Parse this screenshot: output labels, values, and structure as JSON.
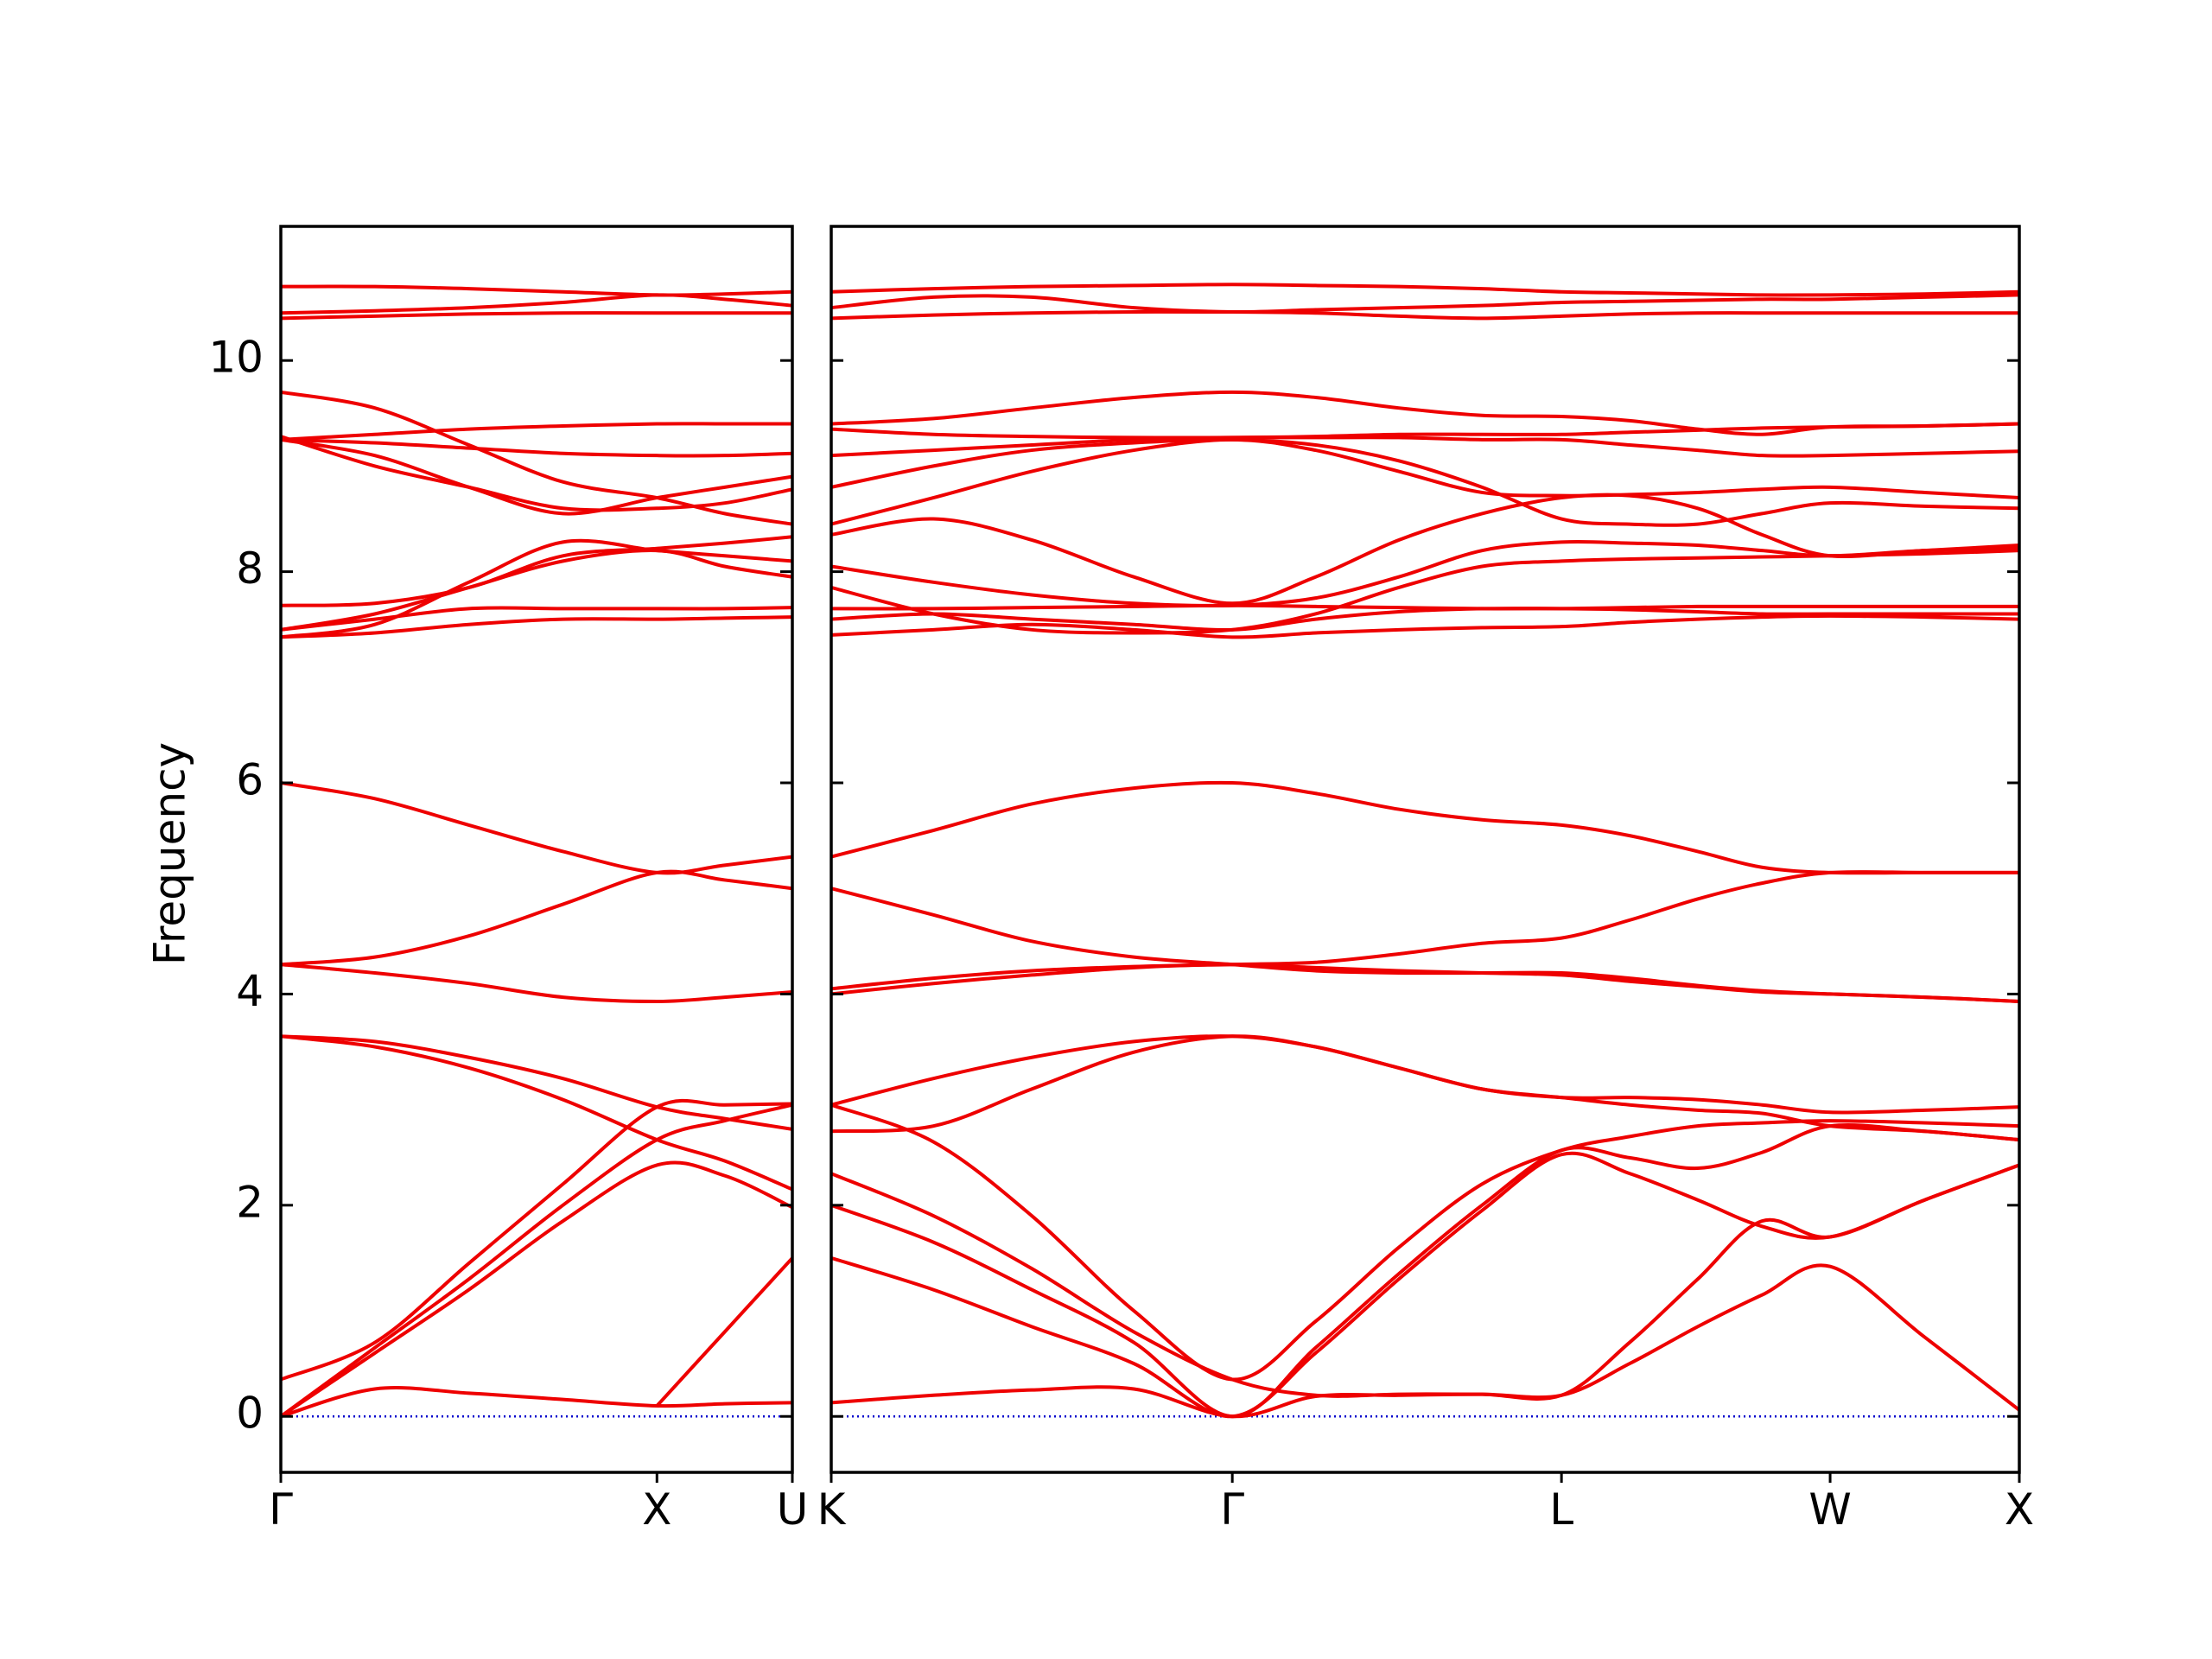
{
  "chart_data": [
    {
      "type": "line",
      "ylabel": "Frequency",
      "line_color": "#ee0000",
      "zero_line": {
        "y": 0,
        "color": "#0000cc"
      },
      "xlim": [
        0,
        1.36
      ],
      "ylim": [
        -0.53,
        11.27
      ],
      "xticks": [
        {
          "value": 0,
          "label": "Γ"
        },
        {
          "value": 1,
          "label": "X"
        },
        {
          "value": 1.36,
          "label": "U"
        }
      ],
      "yticks": [
        0,
        2,
        4,
        6,
        8,
        10
      ],
      "x": [
        0,
        0.25,
        0.5,
        0.75,
        1.0,
        1.18,
        1.36
      ],
      "series": [
        {
          "values": [
            0,
            0.26,
            0.22,
            0.16,
            0.1,
            0.12,
            0.13
          ]
        },
        {
          "values": [
            0,
            0.6,
            1.2,
            1.85,
            2.38,
            2.28,
            1.98
          ]
        },
        {
          "values": [
            0,
            0.65,
            1.3,
            2.0,
            2.62,
            2.8,
            2.95
          ]
        },
        {
          "values": [
            0.35,
            0.7,
            1.45,
            2.2,
            2.93,
            2.95,
            2.96
          ]
        },
        {
          "values": [
            3.6,
            3.5,
            3.3,
            3.0,
            2.62,
            2.42,
            2.15
          ]
        },
        {
          "values": [
            3.6,
            3.55,
            3.4,
            3.2,
            2.93,
            2.82,
            2.72
          ]
        },
        {
          "values": [
            null,
            null,
            null,
            null,
            0.1,
            0.8,
            1.5
          ]
        },
        {
          "values": [
            4.28,
            4.2,
            4.1,
            3.97,
            3.93,
            3.97,
            4.02
          ]
        },
        {
          "values": [
            4.28,
            4.35,
            4.55,
            4.85,
            5.15,
            5.08,
            5.0
          ]
        },
        {
          "values": [
            6.0,
            5.85,
            5.6,
            5.35,
            5.15,
            5.22,
            5.3
          ]
        },
        {
          "values": [
            7.38,
            7.42,
            7.5,
            7.55,
            7.55,
            7.56,
            7.57
          ]
        },
        {
          "values": [
            7.45,
            7.55,
            7.65,
            7.65,
            7.65,
            7.65,
            7.66
          ]
        },
        {
          "values": [
            7.45,
            7.6,
            7.85,
            8.1,
            8.2,
            8.05,
            7.95
          ]
        },
        {
          "values": [
            7.68,
            7.7,
            7.85,
            8.15,
            8.22,
            8.27,
            8.33
          ]
        },
        {
          "values": [
            7.38,
            7.5,
            7.9,
            8.28,
            8.2,
            8.15,
            8.1
          ]
        },
        {
          "values": [
            9.25,
            9.1,
            8.8,
            8.55,
            8.7,
            8.8,
            8.9
          ]
        },
        {
          "values": [
            9.28,
            9.0,
            8.8,
            8.6,
            8.6,
            8.65,
            8.78
          ]
        },
        {
          "values": [
            9.25,
            9.22,
            9.17,
            9.12,
            9.1,
            9.1,
            9.12
          ]
        },
        {
          "values": [
            9.25,
            9.3,
            9.35,
            9.38,
            9.4,
            9.4,
            9.4
          ]
        },
        {
          "values": [
            9.7,
            9.55,
            9.2,
            8.85,
            8.7,
            8.55,
            8.45
          ]
        },
        {
          "values": [
            10.4,
            10.42,
            10.44,
            10.45,
            10.45,
            10.45,
            10.45
          ]
        },
        {
          "values": [
            10.45,
            10.47,
            10.5,
            10.55,
            10.62,
            10.58,
            10.52
          ]
        },
        {
          "values": [
            10.7,
            10.7,
            10.68,
            10.65,
            10.62,
            10.63,
            10.65
          ]
        }
      ]
    },
    {
      "type": "line",
      "line_color": "#ee0000",
      "zero_line": {
        "y": 0,
        "color": "#0000cc"
      },
      "xlim": [
        0,
        3.14
      ],
      "ylim": [
        -0.53,
        11.27
      ],
      "xticks": [
        {
          "value": 0,
          "label": "K"
        },
        {
          "value": 1.06,
          "label": "Γ"
        },
        {
          "value": 1.93,
          "label": "L"
        },
        {
          "value": 2.64,
          "label": "W"
        },
        {
          "value": 3.14,
          "label": "X"
        }
      ],
      "x": [
        0,
        0.27,
        0.53,
        0.8,
        1.06,
        1.28,
        1.5,
        1.72,
        1.93,
        2.11,
        2.29,
        2.46,
        2.64,
        2.89,
        3.14
      ],
      "series": [
        {
          "values": [
            0.13,
            0.2,
            0.25,
            0.26,
            0,
            0.19,
            0.2,
            0.21,
            0.2,
            0.5,
            0.85,
            1.15,
            1.42,
            0.75,
            0.06
          ]
        },
        {
          "values": [
            1.5,
            1.2,
            0.85,
            0.5,
            0,
            0.6,
            1.3,
            1.95,
            2.48,
            2.3,
            2.05,
            1.8,
            1.7,
            2.05,
            2.38
          ]
        },
        {
          "values": [
            2.0,
            1.65,
            1.2,
            0.7,
            0,
            0.65,
            1.35,
            2.0,
            2.52,
            2.45,
            2.35,
            2.5,
            2.75,
            2.7,
            2.62
          ]
        },
        {
          "values": [
            2.3,
            1.9,
            1.4,
            0.8,
            0.35,
            0.2,
            0.21,
            0.21,
            0.2,
            0.7,
            1.3,
            1.85,
            1.7,
            2.05,
            2.38
          ]
        },
        {
          "values": [
            2.95,
            2.6,
            1.9,
            1.0,
            0.35,
            0.9,
            1.6,
            2.2,
            2.52,
            2.65,
            2.75,
            2.78,
            2.8,
            2.78,
            2.75
          ]
        },
        {
          "values": [
            2.7,
            2.75,
            3.1,
            3.45,
            3.6,
            3.5,
            3.3,
            3.1,
            3.02,
            3.02,
            3.0,
            2.95,
            2.88,
            2.9,
            2.93
          ]
        },
        {
          "values": [
            2.95,
            3.2,
            3.4,
            3.55,
            3.6,
            3.5,
            3.3,
            3.1,
            3.02,
            2.95,
            2.9,
            2.87,
            2.75,
            2.7,
            2.62
          ]
        },
        {
          "values": [
            4.0,
            4.1,
            4.18,
            4.25,
            4.28,
            4.25,
            4.22,
            4.2,
            4.18,
            4.12,
            4.07,
            4.02,
            4.0,
            3.97,
            3.93
          ]
        },
        {
          "values": [
            4.05,
            4.15,
            4.22,
            4.26,
            4.28,
            4.3,
            4.38,
            4.48,
            4.53,
            4.7,
            4.9,
            5.05,
            5.15,
            5.15,
            5.15
          ]
        },
        {
          "values": [
            5.0,
            4.75,
            4.5,
            4.35,
            4.28,
            4.22,
            4.2,
            4.2,
            4.2,
            4.15,
            4.08,
            4.03,
            4.0,
            3.97,
            3.93
          ]
        },
        {
          "values": [
            5.3,
            5.55,
            5.8,
            5.95,
            6.0,
            5.9,
            5.75,
            5.65,
            5.6,
            5.5,
            5.35,
            5.2,
            5.15,
            5.15,
            5.15
          ]
        },
        {
          "values": [
            7.4,
            7.45,
            7.5,
            7.45,
            7.38,
            7.42,
            7.45,
            7.47,
            7.48,
            7.52,
            7.55,
            7.57,
            7.58,
            7.57,
            7.55
          ]
        },
        {
          "values": [
            7.55,
            7.6,
            7.55,
            7.5,
            7.45,
            7.55,
            7.62,
            7.65,
            7.65,
            7.64,
            7.62,
            7.6,
            7.6,
            7.6,
            7.6
          ]
        },
        {
          "values": [
            7.65,
            7.65,
            7.66,
            7.67,
            7.68,
            7.67,
            7.66,
            7.65,
            7.65,
            7.66,
            7.67,
            7.67,
            7.67,
            7.67,
            7.67
          ]
        },
        {
          "values": [
            7.85,
            7.6,
            7.45,
            7.42,
            7.45,
            7.6,
            7.85,
            8.05,
            8.1,
            8.12,
            8.13,
            8.14,
            8.15,
            8.17,
            8.2
          ]
        },
        {
          "values": [
            8.05,
            7.9,
            7.78,
            7.7,
            7.68,
            7.75,
            7.95,
            8.2,
            8.28,
            8.27,
            8.25,
            8.2,
            8.15,
            8.2,
            8.22
          ]
        },
        {
          "values": [
            8.35,
            8.5,
            8.3,
            7.95,
            7.7,
            7.95,
            8.3,
            8.55,
            8.7,
            8.72,
            8.6,
            8.35,
            8.15,
            8.2,
            8.25
          ]
        },
        {
          "values": [
            8.45,
            8.7,
            8.95,
            9.15,
            9.25,
            9.15,
            8.95,
            8.75,
            8.72,
            8.73,
            8.75,
            8.78,
            8.8,
            8.75,
            8.7
          ]
        },
        {
          "values": [
            8.8,
            9.0,
            9.15,
            9.22,
            9.25,
            9.2,
            9.05,
            8.8,
            8.5,
            8.45,
            8.45,
            8.55,
            8.65,
            8.62,
            8.6
          ]
        },
        {
          "values": [
            9.1,
            9.15,
            9.2,
            9.25,
            9.27,
            9.27,
            9.27,
            9.25,
            9.25,
            9.2,
            9.15,
            9.1,
            9.1,
            9.12,
            9.14
          ]
        },
        {
          "values": [
            9.4,
            9.45,
            9.55,
            9.65,
            9.7,
            9.65,
            9.55,
            9.48,
            9.47,
            9.43,
            9.35,
            9.3,
            9.37,
            9.38,
            9.4
          ]
        },
        {
          "values": [
            9.35,
            9.3,
            9.28,
            9.27,
            9.27,
            9.28,
            9.3,
            9.3,
            9.3,
            9.32,
            9.34,
            9.36,
            9.37,
            9.38,
            9.4
          ]
        },
        {
          "values": [
            10.4,
            10.43,
            10.45,
            10.46,
            10.46,
            10.45,
            10.42,
            10.4,
            10.42,
            10.44,
            10.45,
            10.45,
            10.45,
            10.45,
            10.45
          ]
        },
        {
          "values": [
            10.5,
            10.6,
            10.6,
            10.5,
            10.46,
            10.48,
            10.5,
            10.52,
            10.55,
            10.56,
            10.57,
            10.58,
            10.58,
            10.6,
            10.62
          ]
        },
        {
          "values": [
            10.65,
            10.68,
            10.7,
            10.71,
            10.72,
            10.71,
            10.7,
            10.68,
            10.65,
            10.64,
            10.63,
            10.62,
            10.62,
            10.63,
            10.65
          ]
        }
      ]
    }
  ]
}
